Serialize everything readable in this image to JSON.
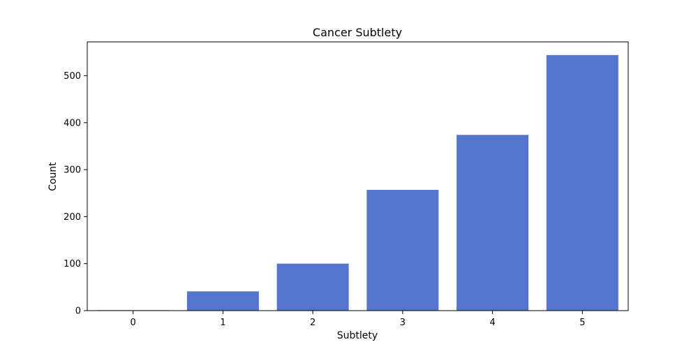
{
  "chart_data": {
    "type": "bar",
    "title": "Cancer Subtlety",
    "xlabel": "Subtlety",
    "ylabel": "Count",
    "categories": [
      "0",
      "1",
      "2",
      "3",
      "4",
      "5"
    ],
    "values": [
      1,
      41,
      100,
      257,
      374,
      544
    ],
    "ylim": [
      0,
      572
    ],
    "yticks": [
      0,
      100,
      200,
      300,
      400,
      500
    ],
    "bar_color": "#5474d0",
    "grid": false,
    "legend": "none"
  }
}
